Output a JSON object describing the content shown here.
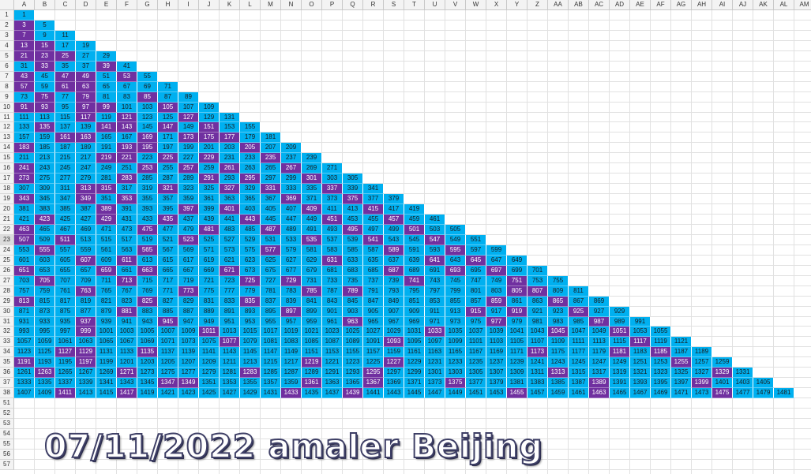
{
  "sheet": {
    "columns": [
      "A",
      "B",
      "C",
      "D",
      "E",
      "F",
      "G",
      "H",
      "I",
      "J",
      "K",
      "L",
      "M",
      "N",
      "O",
      "P",
      "Q",
      "R",
      "S",
      "T",
      "U",
      "V",
      "W",
      "X",
      "Y",
      "Z",
      "AA",
      "AB",
      "AC",
      "AD",
      "AE",
      "AF",
      "AG",
      "AH",
      "AI",
      "AJ",
      "AK",
      "AL",
      "AM"
    ],
    "rows": [
      "1",
      "2",
      "3",
      "4",
      "5",
      "6",
      "7",
      "8",
      "9",
      "10",
      "11",
      "12",
      "13",
      "14",
      "15",
      "16",
      "17",
      "18",
      "19",
      "20",
      "21",
      "22",
      "23",
      "24",
      "25",
      "26",
      "27",
      "28",
      "29",
      "30",
      "31",
      "32",
      "33",
      "34",
      "35",
      "36",
      "37",
      "38",
      "51",
      "52",
      "53",
      "54",
      "55",
      "56",
      "57"
    ],
    "selected_row": "23",
    "colors": {
      "blue": "#00b0f0",
      "purple": "#7030a0",
      "grid": "#e1e1e1",
      "header": "#f3f3f3"
    },
    "triangle_rows": 38,
    "purple_cells": [
      [
        1,
        0
      ],
      [
        2,
        0
      ],
      [
        3,
        0
      ],
      [
        3,
        1
      ],
      [
        4,
        0
      ],
      [
        4,
        1
      ],
      [
        4,
        2
      ],
      [
        5,
        1
      ],
      [
        5,
        4
      ],
      [
        6,
        0
      ],
      [
        6,
        2
      ],
      [
        6,
        3
      ],
      [
        6,
        5
      ],
      [
        7,
        0
      ],
      [
        7,
        2
      ],
      [
        7,
        3
      ],
      [
        8,
        1
      ],
      [
        8,
        3
      ],
      [
        8,
        6
      ],
      [
        9,
        0
      ],
      [
        9,
        1
      ],
      [
        9,
        3
      ],
      [
        9,
        4
      ],
      [
        9,
        7
      ],
      [
        10,
        3
      ],
      [
        10,
        5
      ],
      [
        10,
        8
      ],
      [
        11,
        1
      ],
      [
        11,
        4
      ],
      [
        11,
        5
      ],
      [
        11,
        7
      ],
      [
        11,
        9
      ],
      [
        12,
        2
      ],
      [
        12,
        3
      ],
      [
        12,
        6
      ],
      [
        12,
        8
      ],
      [
        12,
        9
      ],
      [
        12,
        10
      ],
      [
        13,
        0
      ],
      [
        13,
        5
      ],
      [
        13,
        6
      ],
      [
        13,
        11
      ],
      [
        14,
        4
      ],
      [
        14,
        5
      ],
      [
        14,
        7
      ],
      [
        14,
        9
      ],
      [
        14,
        12
      ],
      [
        15,
        0
      ],
      [
        15,
        6
      ],
      [
        15,
        8
      ],
      [
        15,
        10
      ],
      [
        15,
        13
      ],
      [
        16,
        0
      ],
      [
        16,
        5
      ],
      [
        16,
        9
      ],
      [
        16,
        11
      ],
      [
        16,
        14
      ],
      [
        17,
        3
      ],
      [
        17,
        4
      ],
      [
        17,
        7
      ],
      [
        17,
        10
      ],
      [
        17,
        12
      ],
      [
        17,
        15
      ],
      [
        18,
        0
      ],
      [
        18,
        3
      ],
      [
        18,
        5
      ],
      [
        18,
        13
      ],
      [
        18,
        16
      ],
      [
        19,
        4
      ],
      [
        19,
        8
      ],
      [
        19,
        10
      ],
      [
        19,
        14
      ],
      [
        19,
        17
      ],
      [
        20,
        1
      ],
      [
        20,
        4
      ],
      [
        20,
        7
      ],
      [
        20,
        11
      ],
      [
        20,
        15
      ],
      [
        20,
        18
      ],
      [
        21,
        0
      ],
      [
        21,
        6
      ],
      [
        21,
        9
      ],
      [
        21,
        12
      ],
      [
        21,
        16
      ],
      [
        21,
        19
      ],
      [
        22,
        0
      ],
      [
        22,
        2
      ],
      [
        22,
        8
      ],
      [
        22,
        14
      ],
      [
        22,
        17
      ],
      [
        22,
        20
      ],
      [
        23,
        1
      ],
      [
        23,
        6
      ],
      [
        23,
        12
      ],
      [
        23,
        18
      ],
      [
        23,
        21
      ],
      [
        24,
        3
      ],
      [
        24,
        5
      ],
      [
        24,
        15
      ],
      [
        24,
        20
      ],
      [
        24,
        22
      ],
      [
        25,
        0
      ],
      [
        25,
        4
      ],
      [
        25,
        6
      ],
      [
        25,
        10
      ],
      [
        25,
        18
      ],
      [
        25,
        21
      ],
      [
        25,
        23
      ],
      [
        26,
        1
      ],
      [
        26,
        5
      ],
      [
        26,
        11
      ],
      [
        26,
        13
      ],
      [
        26,
        19
      ],
      [
        26,
        24
      ],
      [
        27,
        3
      ],
      [
        27,
        8
      ],
      [
        27,
        14
      ],
      [
        27,
        16
      ],
      [
        27,
        24
      ],
      [
        27,
        25
      ],
      [
        28,
        0
      ],
      [
        28,
        6
      ],
      [
        28,
        11
      ],
      [
        28,
        23
      ],
      [
        28,
        26
      ],
      [
        29,
        5
      ],
      [
        29,
        13
      ],
      [
        29,
        22
      ],
      [
        29,
        24
      ],
      [
        29,
        27
      ],
      [
        30,
        3
      ],
      [
        30,
        7
      ],
      [
        30,
        16
      ],
      [
        30,
        23
      ],
      [
        30,
        28
      ],
      [
        31,
        3
      ],
      [
        31,
        9
      ],
      [
        31,
        20
      ],
      [
        31,
        26
      ],
      [
        31,
        29
      ],
      [
        32,
        10
      ],
      [
        32,
        18
      ],
      [
        32,
        30
      ],
      [
        33,
        2
      ],
      [
        33,
        3
      ],
      [
        33,
        6
      ],
      [
        33,
        25
      ],
      [
        33,
        29
      ],
      [
        33,
        31
      ],
      [
        34,
        0
      ],
      [
        34,
        3
      ],
      [
        34,
        14
      ],
      [
        34,
        18
      ],
      [
        34,
        32
      ],
      [
        35,
        1
      ],
      [
        35,
        5
      ],
      [
        35,
        11
      ],
      [
        35,
        17
      ],
      [
        35,
        26
      ],
      [
        35,
        34
      ],
      [
        36,
        7
      ],
      [
        36,
        8
      ],
      [
        36,
        14
      ],
      [
        36,
        17
      ],
      [
        36,
        21
      ],
      [
        36,
        28
      ],
      [
        36,
        33
      ],
      [
        37,
        2
      ],
      [
        37,
        5
      ],
      [
        37,
        13
      ],
      [
        37,
        16
      ],
      [
        37,
        24
      ],
      [
        37,
        28
      ],
      [
        37,
        34
      ],
      [
        38,
        1
      ],
      [
        38,
        8
      ],
      [
        38,
        10
      ],
      [
        38,
        14
      ],
      [
        38,
        18
      ],
      [
        38,
        22
      ],
      [
        38,
        26
      ],
      [
        38,
        30
      ],
      [
        38,
        33
      ],
      [
        38,
        37
      ]
    ]
  },
  "watermark": {
    "text": "07/11/2022 amaler Beijing"
  }
}
